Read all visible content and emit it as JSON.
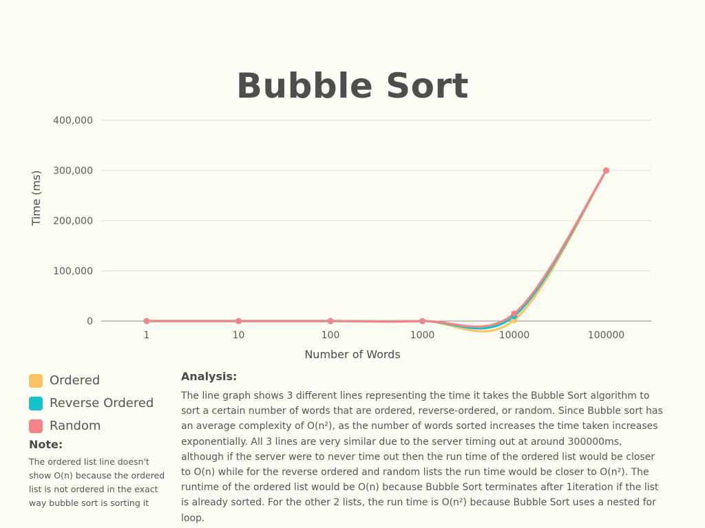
{
  "chart_data": {
    "type": "line",
    "title": "Bubble Sort",
    "xlabel": "Number of Words",
    "ylabel": "Time (ms)",
    "categories": [
      "1",
      "10",
      "100",
      "1000",
      "10000",
      "100000"
    ],
    "y_ticks": [
      "0",
      "100,000",
      "200,000",
      "300,000",
      "400,000"
    ],
    "ylim": [
      0,
      400000
    ],
    "grid": true,
    "legend": "bottom-left",
    "series": [
      {
        "name": "Ordered",
        "color": "#fcc466",
        "values": [
          0,
          0,
          0,
          0,
          2000,
          300000
        ]
      },
      {
        "name": "Reverse Ordered",
        "color": "#17c1c9",
        "values": [
          0,
          0,
          0,
          0,
          10000,
          300000
        ]
      },
      {
        "name": "Random",
        "color": "#f4868a",
        "values": [
          0,
          0,
          0,
          0,
          15000,
          300000
        ]
      }
    ]
  },
  "note": {
    "title": "Note:",
    "body": "The ordered list line doesn't show O(n) because the ordered list is not ordered in the exact way bubble sort is sorting it"
  },
  "analysis": {
    "title": "Analysis:",
    "body": "The line graph shows 3 different lines representing the time it takes the Bubble Sort algorithm to sort a certain number of words that are ordered, reverse-ordered, or random. Since Bubble sort has an average complexity of O(n²), as the number of words sorted increases the time taken increases exponentially. All 3 lines are very similar due to the server timing out at around 300000ms, although if the server were to never time out then the run time of the ordered list would be closer to O(n) while for the reverse ordered and random lists the run time would be closer to O(n²). The runtime of the ordered list would be O(n) because Bubble Sort terminates after 1iteration if the list is already sorted. For the other 2 lists, the run time is O(n²) because Bubble Sort uses a nested for loop."
  }
}
